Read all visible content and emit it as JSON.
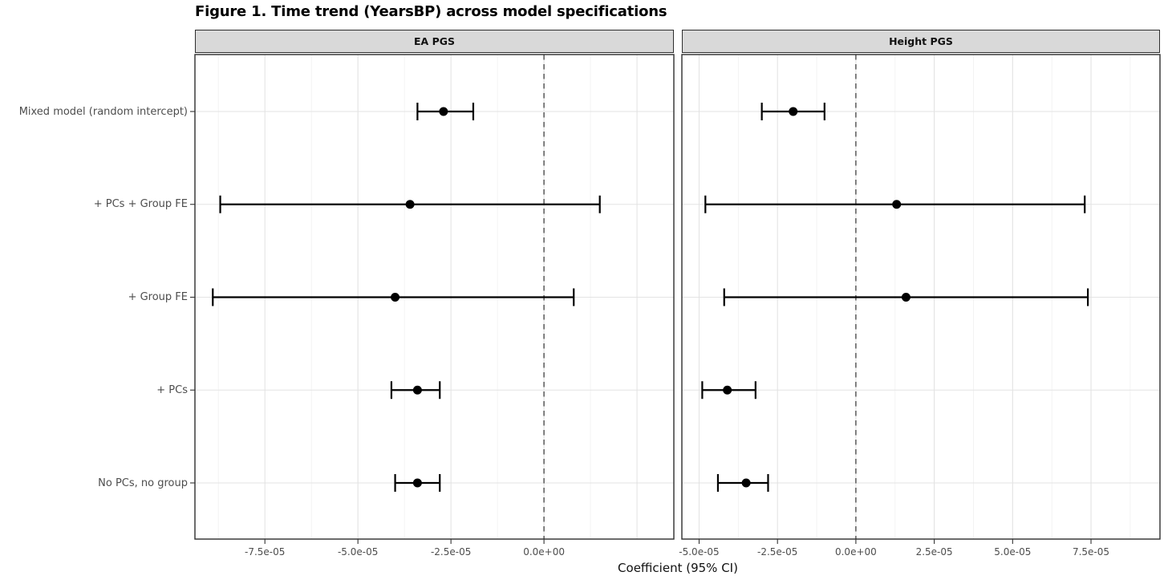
{
  "colors": {
    "background": "#ffffff",
    "panel_bg": "#ffffff",
    "strip_bg": "#d9d9d9",
    "border": "#2e2e2e",
    "grid_major": "#e3e3e3",
    "grid_minor": "#f0f0f0",
    "zero_line": "#4d4d4d",
    "tick": "#333333",
    "data": "#000000"
  },
  "chart_data": {
    "type": "forest",
    "title": "Figure 1. Time trend (YearsBP) across model specifications",
    "xlabel": "Coefficient (95% CI)",
    "grid": "on",
    "legend": "none",
    "categories": [
      "Mixed model (random intercept)",
      "+ PCs + Group FE",
      "+ Group FE",
      "+ PCs",
      "No PCs, no group"
    ],
    "panels": [
      {
        "label": "EA PGS",
        "xlim": [
          -9.38e-05,
          3.49e-05
        ],
        "grid_major_step": 2.5e-05,
        "grid_minor_step": 1.25e-05,
        "zero_line_value": 0,
        "ticks": [
          {
            "value": -7.5e-05,
            "label": "-7.5e-05"
          },
          {
            "value": -5e-05,
            "label": "-5.0e-05"
          },
          {
            "value": -2.5e-05,
            "label": "-2.5e-05"
          },
          {
            "value": 0,
            "label": "0.0e+00"
          }
        ],
        "points": [
          {
            "category": "Mixed model (random intercept)",
            "estimate": -2.7e-05,
            "ci_low": -3.4e-05,
            "ci_high": -1.9e-05
          },
          {
            "category": "+ PCs + Group FE",
            "estimate": -3.6e-05,
            "ci_low": -8.7e-05,
            "ci_high": 1.5e-05
          },
          {
            "category": "+ Group FE",
            "estimate": -4e-05,
            "ci_low": -8.9e-05,
            "ci_high": 8e-06
          },
          {
            "category": "+ PCs",
            "estimate": -3.4e-05,
            "ci_low": -4.1e-05,
            "ci_high": -2.8e-05
          },
          {
            "category": "No PCs, no group",
            "estimate": -3.4e-05,
            "ci_low": -4e-05,
            "ci_high": -2.8e-05
          }
        ]
      },
      {
        "label": "Height PGS",
        "xlim": [
          -5.55e-05,
          9.7e-05
        ],
        "grid_major_step": 2.5e-05,
        "grid_minor_step": 1.25e-05,
        "zero_line_value": 0,
        "ticks": [
          {
            "value": -5e-05,
            "label": "-5.0e-05"
          },
          {
            "value": -2.5e-05,
            "label": "-2.5e-05"
          },
          {
            "value": 0,
            "label": "0.0e+00"
          },
          {
            "value": 2.5e-05,
            "label": "2.5e-05"
          },
          {
            "value": 5e-05,
            "label": "5.0e-05"
          },
          {
            "value": 7.5e-05,
            "label": "7.5e-05"
          }
        ],
        "points": [
          {
            "category": "Mixed model (random intercept)",
            "estimate": -2e-05,
            "ci_low": -3e-05,
            "ci_high": -1e-05
          },
          {
            "category": "+ PCs + Group FE",
            "estimate": 1.3e-05,
            "ci_low": -4.8e-05,
            "ci_high": 7.3e-05
          },
          {
            "category": "+ Group FE",
            "estimate": 1.6e-05,
            "ci_low": -4.2e-05,
            "ci_high": 7.4e-05
          },
          {
            "category": "+ PCs",
            "estimate": -4.1e-05,
            "ci_low": -4.9e-05,
            "ci_high": -3.2e-05
          },
          {
            "category": "No PCs, no group",
            "estimate": -3.5e-05,
            "ci_low": -4.4e-05,
            "ci_high": -2.8e-05
          }
        ]
      }
    ]
  }
}
